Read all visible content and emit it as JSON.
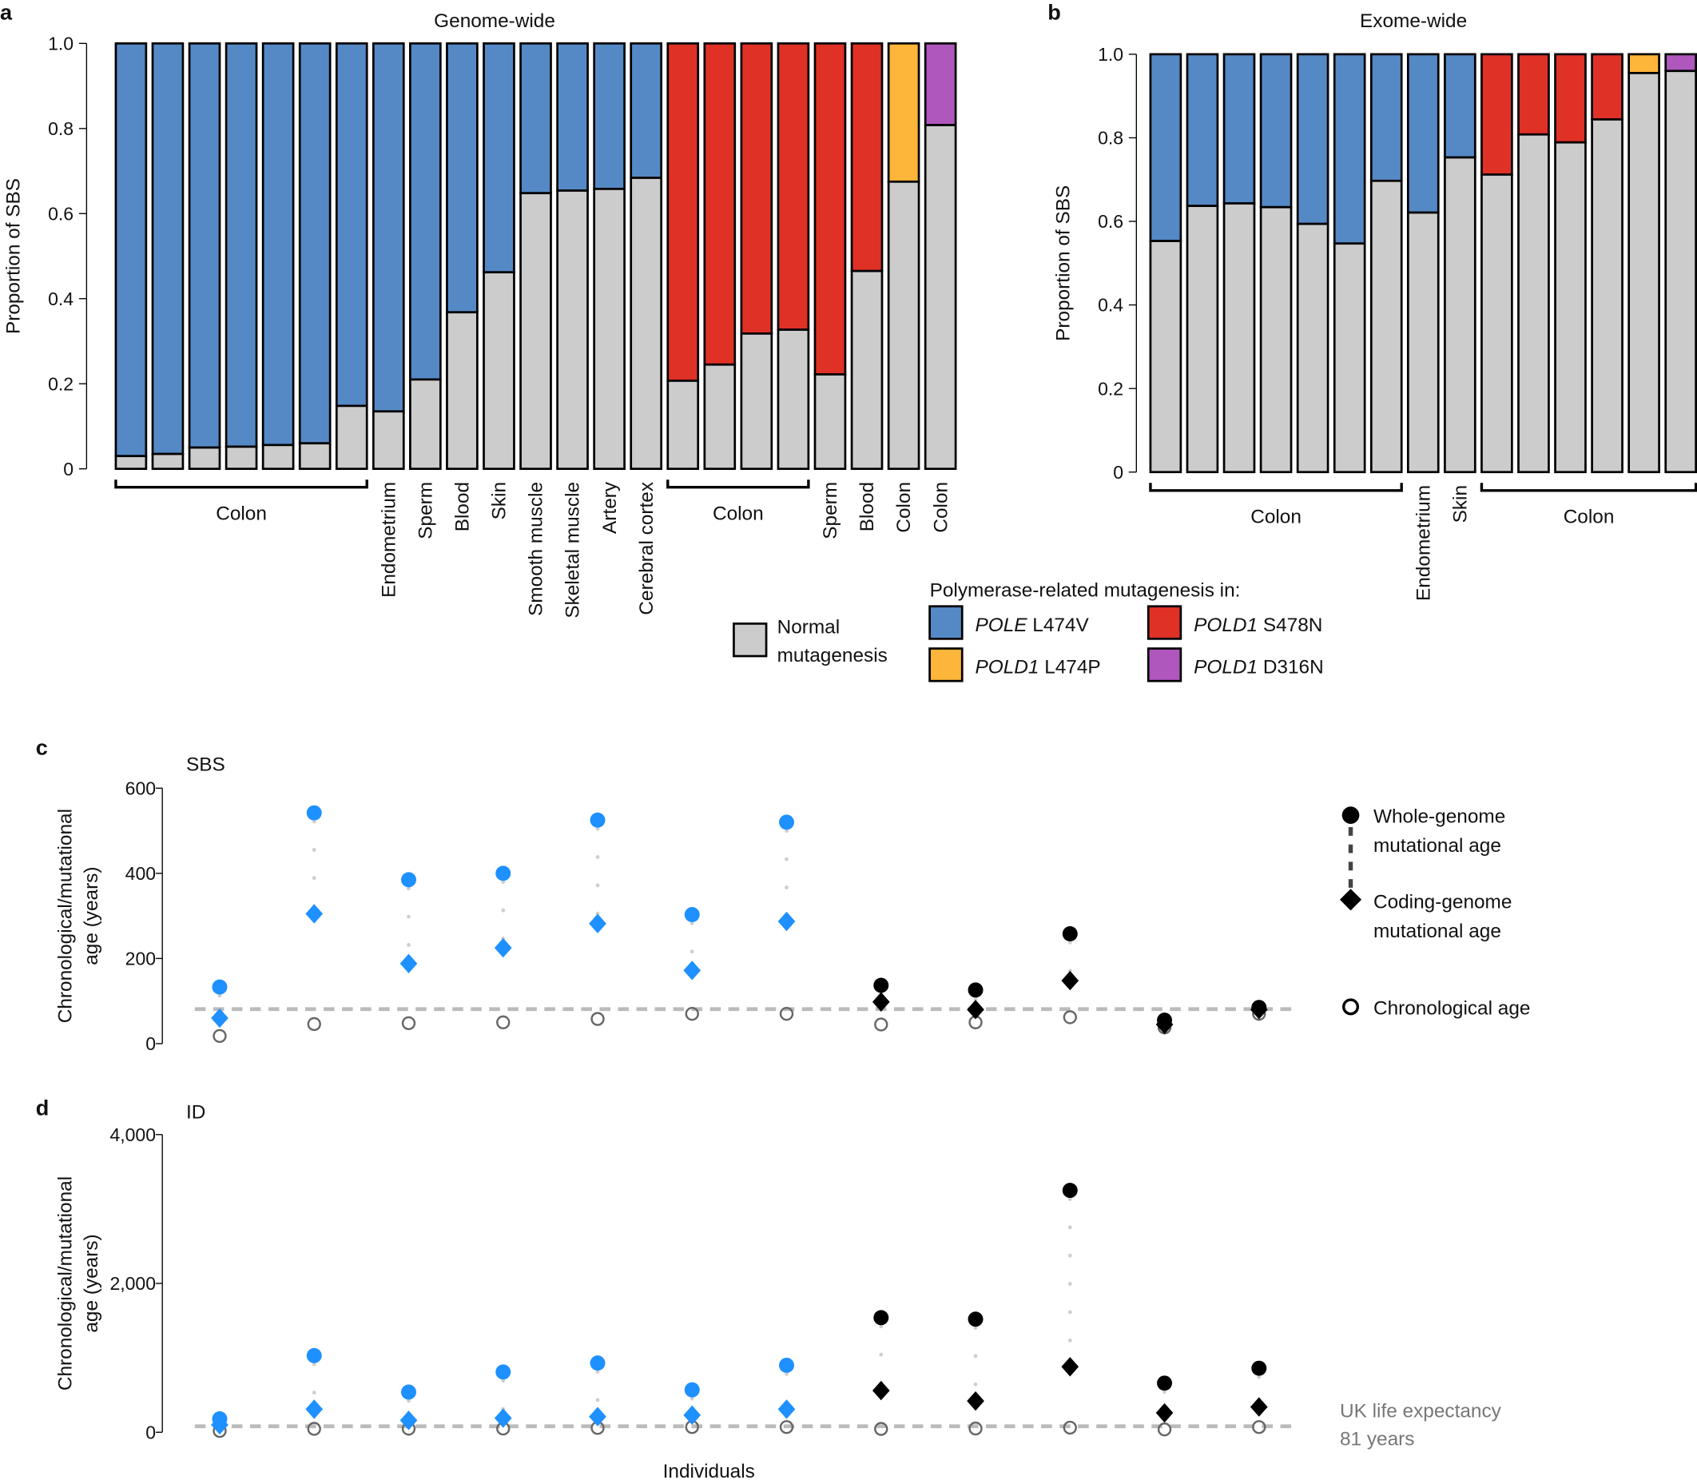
{
  "colors": {
    "normal": "#CCCCCC",
    "pole": "#5589C6",
    "pold1_s478n": "#E03126",
    "pold1_l474p": "#FDB53A",
    "pold1_d316n": "#B057BE",
    "dot_pole": "#1E90FF",
    "dot_s478n": "#FF0000",
    "dot_l474p": "#F8B133",
    "dot_d316n": "#A0509A",
    "life_line": "#BBBBBB"
  },
  "panel_labels": {
    "a": "a",
    "b": "b",
    "c": "c",
    "d": "d"
  },
  "chart_data": [
    {
      "type": "bar",
      "stacked": true,
      "title": "Genome-wide",
      "ylabel": "Proportion of SBS",
      "ylim": [
        0,
        1
      ],
      "yticks": [
        "0",
        "0.2",
        "0.4",
        "0.6",
        "0.8",
        "1.0"
      ],
      "normal": [
        0.03,
        0.035,
        0.05,
        0.052,
        0.056,
        0.06,
        0.148,
        0.135,
        0.21,
        0.368,
        0.462,
        0.648,
        0.654,
        0.658,
        0.684,
        0.207,
        0.245,
        0.318,
        0.327,
        0.222,
        0.465,
        0.675,
        0.808
      ],
      "polymerase": [
        "pole",
        "pole",
        "pole",
        "pole",
        "pole",
        "pole",
        "pole",
        "pole",
        "pole",
        "pole",
        "pole",
        "pole",
        "pole",
        "pole",
        "pole",
        "pold1_s478n",
        "pold1_s478n",
        "pold1_s478n",
        "pold1_s478n",
        "pold1_s478n",
        "pold1_s478n",
        "pold1_l474p",
        "pold1_d316n"
      ],
      "group_labels": [
        {
          "label": "Colon",
          "from": 0,
          "to": 6
        },
        {
          "label": "Colon",
          "from": 15,
          "to": 18
        }
      ],
      "single_labels": [
        {
          "label": "Endometrium",
          "i": 7
        },
        {
          "label": "Sperm",
          "i": 8
        },
        {
          "label": "Blood",
          "i": 9
        },
        {
          "label": "Skin",
          "i": 10
        },
        {
          "label": "Smooth muscle",
          "i": 11
        },
        {
          "label": "Skeletal muscle",
          "i": 12
        },
        {
          "label": "Artery",
          "i": 13
        },
        {
          "label": "Cerebral cortex",
          "i": 14
        },
        {
          "label": "Sperm",
          "i": 19
        },
        {
          "label": "Blood",
          "i": 20
        },
        {
          "label": "Colon",
          "i": 21
        },
        {
          "label": "Colon",
          "i": 22
        }
      ]
    },
    {
      "type": "bar",
      "stacked": true,
      "title": "Exome-wide",
      "ylabel": "Proportion of SBS",
      "ylim": [
        0,
        1
      ],
      "yticks": [
        "0",
        "0.2",
        "0.4",
        "0.6",
        "0.8",
        "1.0"
      ],
      "normal": [
        0.553,
        0.637,
        0.643,
        0.634,
        0.594,
        0.547,
        0.697,
        0.621,
        0.753,
        0.712,
        0.808,
        0.789,
        0.844,
        0.955,
        0.96
      ],
      "polymerase": [
        "pole",
        "pole",
        "pole",
        "pole",
        "pole",
        "pole",
        "pole",
        "pole",
        "pole",
        "pold1_s478n",
        "pold1_s478n",
        "pold1_s478n",
        "pold1_s478n",
        "pold1_l474p",
        "pold1_d316n"
      ],
      "group_labels": [
        {
          "label": "Colon",
          "from": 0,
          "to": 6
        },
        {
          "label": "Colon",
          "from": 9,
          "to": 14
        }
      ],
      "single_labels": [
        {
          "label": "Endometrium",
          "i": 7
        },
        {
          "label": "Skin",
          "i": 8
        }
      ]
    },
    {
      "type": "scatter",
      "title": "SBS",
      "ylabel": [
        "Chronological/mutational",
        "age (years)"
      ],
      "ylim": [
        0,
        600
      ],
      "yticks": [
        {
          "v": 0,
          "t": "0"
        },
        {
          "v": 200,
          "t": "200"
        },
        {
          "v": 400,
          "t": "400"
        },
        {
          "v": 600,
          "t": "600"
        }
      ],
      "groups": [
        "pole",
        "pole",
        "pole",
        "pole",
        "pole",
        "pole",
        "pole",
        "pold1_s478n",
        "pold1_s478n",
        "pold1_s478n",
        "pold1_l474p",
        "pold1_d316n"
      ],
      "whole_genome": [
        133,
        542,
        385,
        400,
        525,
        303,
        520,
        137,
        126,
        258,
        55,
        85
      ],
      "coding_genome": [
        60,
        305,
        188,
        225,
        282,
        172,
        287,
        98,
        80,
        148,
        45,
        80
      ],
      "chronological": [
        18,
        46,
        48,
        50,
        58,
        70,
        70,
        45,
        50,
        62,
        38,
        70
      ],
      "life_expectancy": 81
    },
    {
      "type": "scatter",
      "title": "ID",
      "xlabel": "Individuals",
      "ylabel": [
        "Chronological/mutational",
        "age (years)"
      ],
      "ylim": [
        0,
        4000
      ],
      "yticks": [
        {
          "v": 0,
          "t": "0"
        },
        {
          "v": 2000,
          "t": "2,000"
        },
        {
          "v": 4000,
          "t": "4,000"
        }
      ],
      "groups": [
        "pole",
        "pole",
        "pole",
        "pole",
        "pole",
        "pole",
        "pole",
        "pold1_s478n",
        "pold1_s478n",
        "pold1_s478n",
        "pold1_l474p",
        "pold1_d316n"
      ],
      "whole_genome": [
        180,
        1030,
        540,
        810,
        930,
        570,
        900,
        1540,
        1520,
        3250,
        660,
        860
      ],
      "coding_genome": [
        100,
        310,
        160,
        190,
        210,
        230,
        310,
        560,
        420,
        880,
        260,
        340
      ],
      "chronological": [
        18,
        46,
        48,
        50,
        58,
        70,
        70,
        45,
        50,
        62,
        38,
        70
      ],
      "life_expectancy": 81
    }
  ],
  "legend_bars": {
    "heading": "Polymerase-related mutagenesis in:",
    "normal_1": "Normal",
    "normal_2": "mutagenesis",
    "items": [
      {
        "gene": "POLE",
        "mut": " L474V",
        "key": "pole"
      },
      {
        "gene": "POLD1",
        "mut": " S478N",
        "key": "pold1_s478n"
      },
      {
        "gene": "POLD1",
        "mut": " L474P",
        "key": "pold1_l474p"
      },
      {
        "gene": "POLD1",
        "mut": " D316N",
        "key": "pold1_d316n"
      }
    ]
  },
  "legend_ages": {
    "wg_1": "Whole-genome",
    "wg_2": "mutational age",
    "cg_1": "Coding-genome",
    "cg_2": "mutational age",
    "chrono": "Chronological age"
  },
  "life_expectancy_label": {
    "line1": "UK life expectancy",
    "line2": "81 years"
  }
}
